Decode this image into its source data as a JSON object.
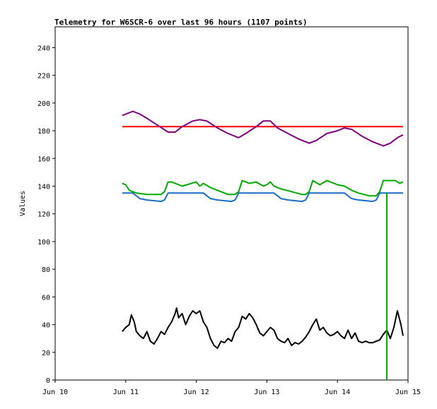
{
  "chart_data": {
    "type": "line",
    "title": "Telemetry for W6SCR-6 over last 96 hours (1107 points)",
    "xlabel": "",
    "ylabel": "Values",
    "ylim": [
      0,
      255
    ],
    "yticks": [
      0,
      20,
      40,
      60,
      80,
      100,
      120,
      140,
      160,
      180,
      200,
      220,
      240
    ],
    "xlim": [
      10,
      15
    ],
    "xticks": [
      {
        "label": "Jun 10",
        "value": 10
      },
      {
        "label": "Jun 11",
        "value": 11
      },
      {
        "label": "Jun 12",
        "value": 12
      },
      {
        "label": "Jun 13",
        "value": 13
      },
      {
        "label": "Jun 14",
        "value": 14
      },
      {
        "label": "Jun 15",
        "value": 15
      }
    ],
    "grid": false,
    "series": [
      {
        "color": "#ff0000",
        "x": [
          10.95,
          11.3,
          11.6,
          11.9,
          12.2,
          12.5,
          12.8,
          13.1,
          13.4,
          13.7,
          14.0,
          14.3,
          14.6,
          14.93
        ],
        "y": [
          183,
          183,
          183,
          183,
          183,
          183,
          183,
          183,
          183,
          183,
          183,
          183,
          183,
          183
        ]
      },
      {
        "color": "#800080",
        "x": [
          10.95,
          11.05,
          11.1,
          11.2,
          11.3,
          11.45,
          11.6,
          11.7,
          11.8,
          11.95,
          12.05,
          12.15,
          12.3,
          12.45,
          12.6,
          12.7,
          12.85,
          12.95,
          13.05,
          13.15,
          13.3,
          13.45,
          13.6,
          13.7,
          13.85,
          14.0,
          14.1,
          14.2,
          14.35,
          14.5,
          14.65,
          14.75,
          14.85,
          14.93
        ],
        "y": [
          191,
          193,
          194,
          192,
          189,
          184,
          179,
          179,
          183,
          187,
          188,
          187,
          182,
          178,
          175,
          178,
          183,
          187,
          187,
          182,
          178,
          174,
          171,
          173,
          178,
          180,
          182,
          181,
          176,
          172,
          169,
          171,
          175,
          177
        ]
      },
      {
        "color": "#00aa00",
        "x": [
          10.95,
          11.0,
          11.05,
          11.15,
          11.3,
          11.5,
          11.55,
          11.6,
          11.65,
          11.8,
          12.0,
          12.05,
          12.1,
          12.2,
          12.3,
          12.45,
          12.55,
          12.6,
          12.65,
          12.75,
          12.85,
          12.95,
          13.0,
          13.05,
          13.1,
          13.2,
          13.35,
          13.5,
          13.55,
          13.6,
          13.65,
          13.75,
          13.85,
          14.0,
          14.1,
          14.2,
          14.3,
          14.45,
          14.55,
          14.6,
          14.65,
          14.75,
          14.82,
          14.88,
          14.93
        ],
        "y": [
          142,
          141,
          137,
          135,
          134,
          134,
          136,
          143,
          143,
          140,
          143,
          140,
          142,
          139,
          137,
          134,
          134,
          136,
          144,
          142,
          143,
          140,
          141,
          143,
          140,
          138,
          136,
          134,
          134,
          136,
          144,
          141,
          144,
          141,
          140,
          137,
          135,
          133,
          133,
          136,
          144,
          144,
          144,
          142,
          143
        ]
      },
      {
        "color": "#1a6fc4",
        "x": [
          10.95,
          11.1,
          11.2,
          11.3,
          11.5,
          11.55,
          11.6,
          11.8,
          12.0,
          12.1,
          12.2,
          12.3,
          12.5,
          12.55,
          12.6,
          12.8,
          13.0,
          13.1,
          13.2,
          13.3,
          13.5,
          13.55,
          13.6,
          13.8,
          14.0,
          14.1,
          14.2,
          14.3,
          14.5,
          14.55,
          14.6,
          14.8,
          14.93
        ],
        "y": [
          135,
          135,
          131,
          130,
          129,
          130,
          135,
          135,
          135,
          135,
          131,
          130,
          129,
          130,
          135,
          135,
          135,
          135,
          131,
          130,
          129,
          130,
          135,
          135,
          135,
          135,
          131,
          130,
          129,
          130,
          135,
          135,
          135
        ]
      },
      {
        "color": "#000000",
        "x": [
          10.95,
          11.0,
          11.05,
          11.08,
          11.12,
          11.15,
          11.2,
          11.25,
          11.3,
          11.35,
          11.4,
          11.45,
          11.5,
          11.55,
          11.6,
          11.65,
          11.7,
          11.72,
          11.75,
          11.8,
          11.85,
          11.9,
          11.95,
          12.0,
          12.05,
          12.1,
          12.15,
          12.2,
          12.25,
          12.3,
          12.35,
          12.4,
          12.45,
          12.5,
          12.55,
          12.6,
          12.65,
          12.7,
          12.75,
          12.8,
          12.85,
          12.9,
          12.95,
          13.0,
          13.05,
          13.1,
          13.15,
          13.2,
          13.25,
          13.3,
          13.35,
          13.4,
          13.45,
          13.5,
          13.55,
          13.6,
          13.65,
          13.7,
          13.75,
          13.8,
          13.85,
          13.9,
          13.95,
          14.0,
          14.05,
          14.1,
          14.15,
          14.2,
          14.25,
          14.3,
          14.35,
          14.4,
          14.45,
          14.5,
          14.55,
          14.6,
          14.65,
          14.7,
          14.75,
          14.8,
          14.85,
          14.9,
          14.93
        ],
        "y": [
          35,
          38,
          40,
          47,
          42,
          35,
          32,
          30,
          35,
          28,
          26,
          30,
          35,
          33,
          38,
          42,
          48,
          52,
          45,
          48,
          40,
          46,
          50,
          48,
          50,
          42,
          38,
          30,
          25,
          23,
          28,
          27,
          30,
          28,
          35,
          38,
          46,
          44,
          48,
          45,
          40,
          34,
          32,
          35,
          38,
          36,
          30,
          28,
          27,
          30,
          25,
          27,
          26,
          28,
          31,
          35,
          40,
          44,
          36,
          38,
          34,
          32,
          33,
          35,
          32,
          30,
          36,
          30,
          34,
          28,
          27,
          28,
          27,
          27,
          28,
          29,
          33,
          36,
          30,
          38,
          50,
          40,
          32
        ]
      },
      {
        "color": "#00aa00",
        "x": [
          14.7,
          14.7
        ],
        "y": [
          0,
          135
        ]
      }
    ]
  }
}
